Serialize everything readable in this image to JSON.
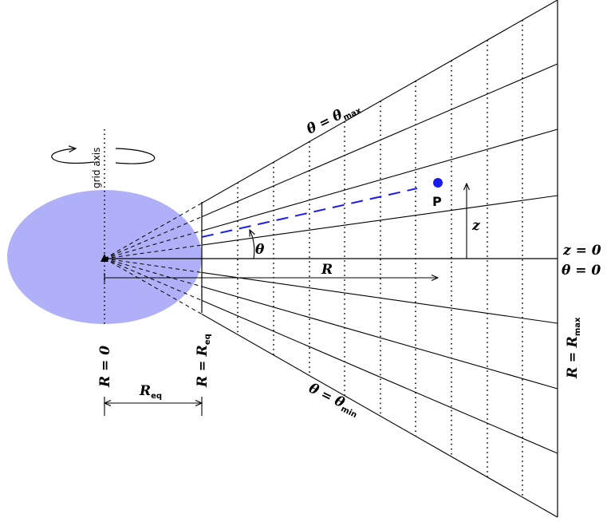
{
  "colors": {
    "planet_fill": "#b0b0f8",
    "point": "#1a1aee",
    "line": "#000000"
  },
  "labels": {
    "grid_axis": "grid axis",
    "theta_max": {
      "lhs": "θ",
      "eq": " = ",
      "sym": "θ",
      "sub": "max"
    },
    "theta_min": {
      "lhs": "θ",
      "eq": " = ",
      "sym": "θ",
      "sub": "min"
    },
    "theta": "θ",
    "R": "R",
    "z": "z",
    "z0": "z = 0",
    "theta0": "θ = 0",
    "point_p": "P",
    "R_zero": "R = 0",
    "R_eq": {
      "lhs": "R",
      "eq": " = ",
      "sym": "R",
      "sub": "eq"
    },
    "R_max": {
      "lhs": "R",
      "eq": " = ",
      "sym": "R",
      "sub": "max"
    },
    "R_eq_width": {
      "sym": "R",
      "sub": "eq"
    }
  },
  "icons": {
    "rotation": "rotation-arrow-icon",
    "origin": "origin-marker-icon"
  }
}
